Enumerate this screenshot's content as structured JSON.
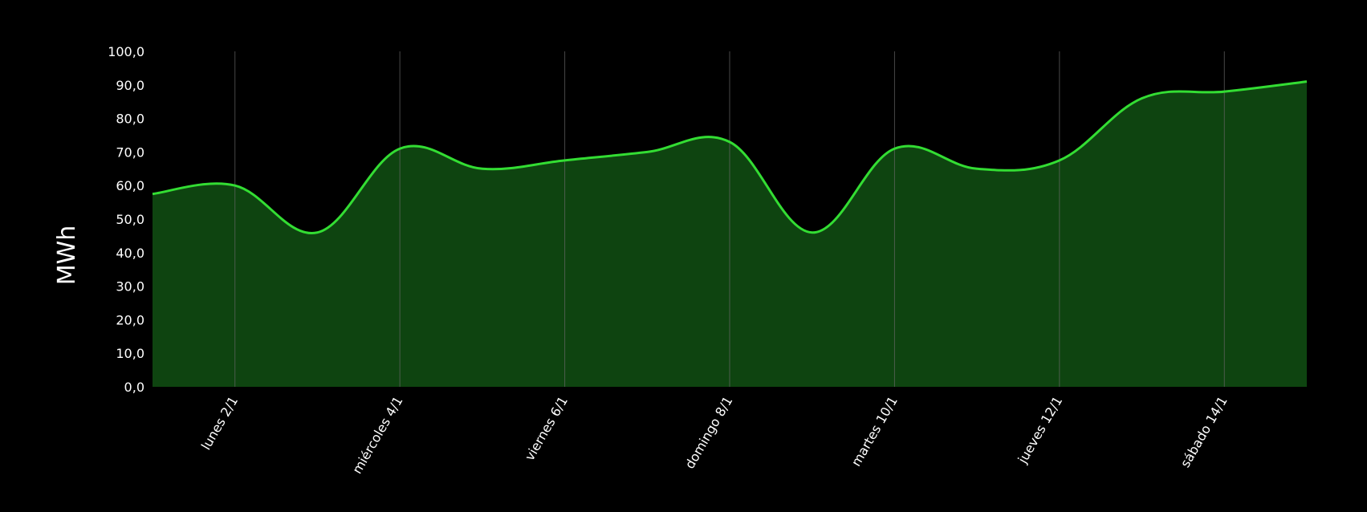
{
  "chart_data": {
    "type": "area",
    "title": "",
    "xlabel": "",
    "ylabel": "MWh",
    "ylim": [
      0,
      100
    ],
    "yticks": [
      "0,0",
      "10,0",
      "20,0",
      "30,0",
      "40,0",
      "50,0",
      "60,0",
      "70,0",
      "80,0",
      "90,0",
      "100,0"
    ],
    "categories": [
      "lunes 2/1",
      "miércoles 4/1",
      "viernes 6/1",
      "domingo 8/1",
      "martes 10/1",
      "jueves 12/1",
      "sábado 14/1"
    ],
    "x": [
      "1/1",
      "2/1",
      "3/1",
      "4/1",
      "5/1",
      "6/1",
      "7/1",
      "8/1",
      "9/1",
      "10/1",
      "11/1",
      "12/1",
      "13/1",
      "14/1",
      "15/1"
    ],
    "series": [
      {
        "values": [
          57.5,
          60.0,
          46.0,
          71.0,
          65.0,
          67.5,
          70.0,
          73.0,
          46.0,
          71.0,
          65.0,
          67.5,
          86.0,
          88.0,
          91.0
        ]
      }
    ],
    "grid": "vertical",
    "colors": {
      "background": "#000000",
      "line": "#33dd33",
      "fill": "#0e4410",
      "grid": "#666666",
      "text": "#ffffff"
    }
  }
}
